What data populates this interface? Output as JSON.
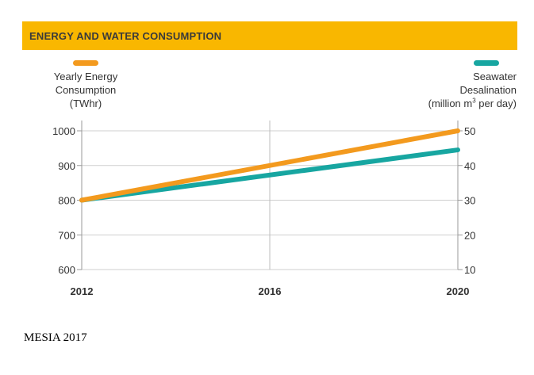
{
  "banner": {
    "title": "ENERGY AND WATER CONSUMPTION"
  },
  "legend": {
    "left": {
      "lines": [
        "Yearly Energy",
        "Consumption",
        "(TWhr)"
      ],
      "color": "#f39a1e"
    },
    "right": {
      "line1": "Seawater",
      "line2": "Desalination",
      "line3_pre": "(million m",
      "line3_sup": "3",
      "line3_post": " per day)",
      "color": "#17a6a1"
    }
  },
  "source": "MESIA 2017",
  "chart_data": {
    "type": "line",
    "x": [
      "2012",
      "2016",
      "2020"
    ],
    "xlim": [
      2012,
      2020
    ],
    "y_left": {
      "ticks": [
        "600",
        "700",
        "800",
        "900",
        "1000"
      ],
      "ylim": [
        600,
        1000
      ]
    },
    "y_right": {
      "ticks": [
        "10",
        "20",
        "30",
        "40",
        "50"
      ],
      "ylim": [
        10,
        50
      ]
    },
    "grid": true,
    "series": [
      {
        "axis": "left",
        "color": "#f39a1e",
        "x": [
          2012,
          2020
        ],
        "values": [
          800,
          1000
        ]
      },
      {
        "axis": "right",
        "color": "#17a6a1",
        "x": [
          2012,
          2020
        ],
        "values": [
          30,
          44.5
        ]
      }
    ]
  }
}
